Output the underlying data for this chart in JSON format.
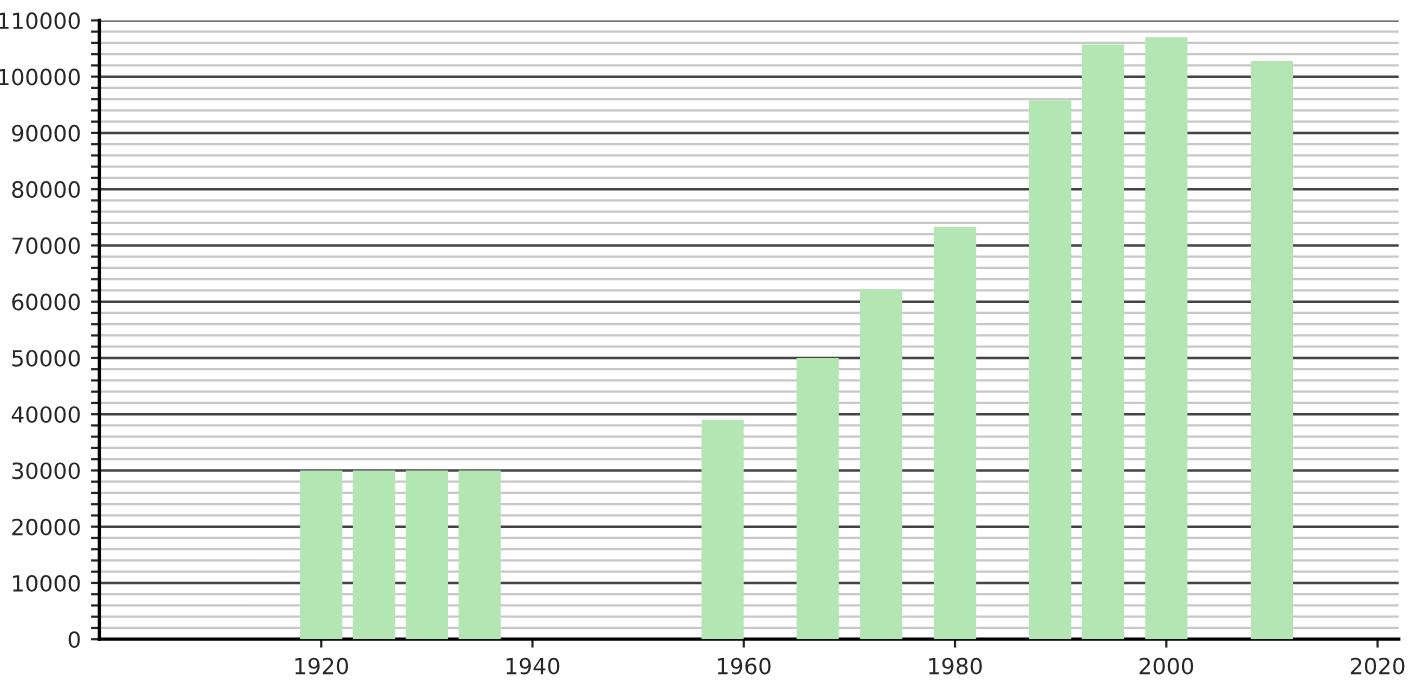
{
  "chart_data": {
    "type": "bar",
    "x": [
      1920,
      1925,
      1930,
      1935,
      1958,
      1967,
      1973,
      1980,
      1989,
      1994,
      2000,
      2010
    ],
    "values": [
      30000,
      30000,
      30000,
      30000,
      39000,
      50000,
      62200,
      73300,
      95800,
      105700,
      107000,
      102800
    ],
    "color": "#b3e6b3",
    "xlim": [
      1899,
      2022
    ],
    "xticks": [
      1920,
      1940,
      1960,
      1980,
      2000,
      2020
    ],
    "ylim": [
      0,
      110000
    ],
    "yticks": [
      0,
      {
        "value": 2000,
        "label": null
      },
      {
        "value": 4000,
        "label": null
      },
      {
        "value": 6000,
        "label": null
      },
      {
        "value": 8000,
        "label": null
      },
      10000,
      {
        "value": 12000,
        "label": null
      },
      {
        "value": 14000,
        "label": null
      },
      {
        "value": 16000,
        "label": null
      },
      {
        "value": 18000,
        "label": null
      },
      20000,
      {
        "value": 22000,
        "label": null
      },
      {
        "value": 24000,
        "label": null
      },
      {
        "value": 26000,
        "label": null
      },
      {
        "value": 28000,
        "label": null
      },
      30000,
      {
        "value": 32000,
        "label": null
      },
      {
        "value": 34000,
        "label": null
      },
      {
        "value": 36000,
        "label": null
      },
      {
        "value": 38000,
        "label": null
      },
      40000,
      {
        "value": 42000,
        "label": null
      },
      {
        "value": 44000,
        "label": null
      },
      {
        "value": 46000,
        "label": null
      },
      {
        "value": 48000,
        "label": null
      },
      50000,
      {
        "value": 52000,
        "label": null
      },
      {
        "value": 54000,
        "label": null
      },
      {
        "value": 56000,
        "label": null
      },
      {
        "value": 58000,
        "label": null
      },
      60000,
      {
        "value": 62000,
        "label": null
      },
      {
        "value": 64000,
        "label": null
      },
      {
        "value": 66000,
        "label": null
      },
      {
        "value": 68000,
        "label": null
      },
      70000,
      {
        "value": 72000,
        "label": null
      },
      {
        "value": 74000,
        "label": null
      },
      {
        "value": 76000,
        "label": null
      },
      {
        "value": 78000,
        "label": null
      },
      80000,
      {
        "value": 82000,
        "label": null
      },
      {
        "value": 84000,
        "label": null
      },
      {
        "value": 86000,
        "label": null
      },
      {
        "value": 88000,
        "label": null
      },
      90000,
      {
        "value": 92000,
        "label": null
      },
      {
        "value": 94000,
        "label": null
      },
      {
        "value": 96000,
        "label": null
      },
      {
        "value": 98000,
        "label": null
      },
      100000,
      {
        "value": 102000,
        "label": null
      },
      {
        "value": 104000,
        "label": null
      },
      {
        "value": 106000,
        "label": null
      },
      {
        "value": 108000,
        "label": null
      },
      110000
    ],
    "grid": "y"
  }
}
